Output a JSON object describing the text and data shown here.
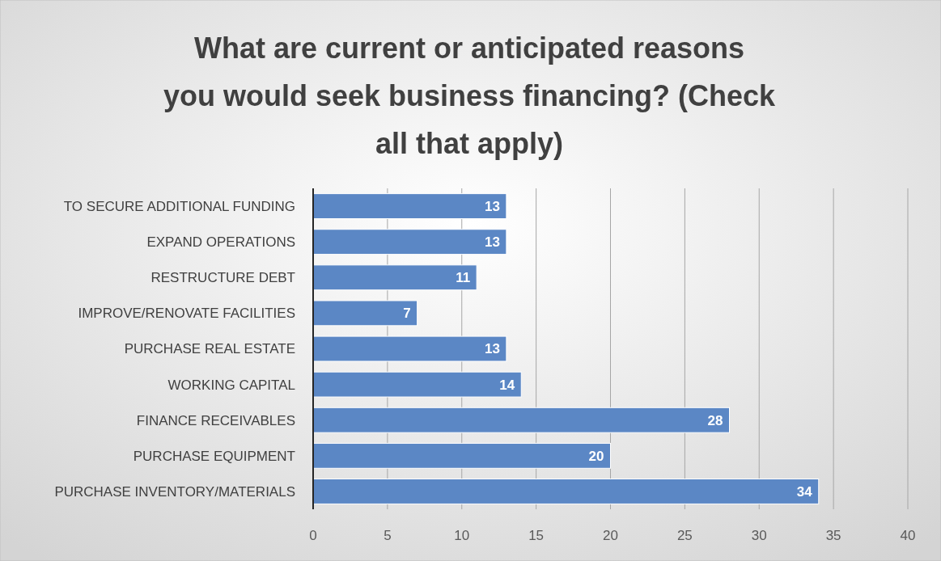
{
  "chart_data": {
    "type": "bar",
    "orientation": "horizontal",
    "title": "What are current or anticipated reasons you would seek business financing? (Check all that apply)",
    "categories": [
      "TO SECURE ADDITIONAL FUNDING",
      "EXPAND OPERATIONS",
      "RESTRUCTURE DEBT",
      "IMPROVE/RENOVATE FACILITIES",
      "PURCHASE REAL ESTATE",
      "WORKING CAPITAL",
      "FINANCE RECEIVABLES",
      "PURCHASE EQUIPMENT",
      "PURCHASE INVENTORY/MATERIALS"
    ],
    "values": [
      13,
      13,
      11,
      7,
      13,
      14,
      28,
      20,
      34
    ],
    "color": "#5b87c5",
    "xlim": [
      0,
      40
    ],
    "xticks": [
      0,
      5,
      10,
      15,
      20,
      25,
      30,
      35,
      40
    ],
    "grid": "x",
    "data_labels": true
  }
}
